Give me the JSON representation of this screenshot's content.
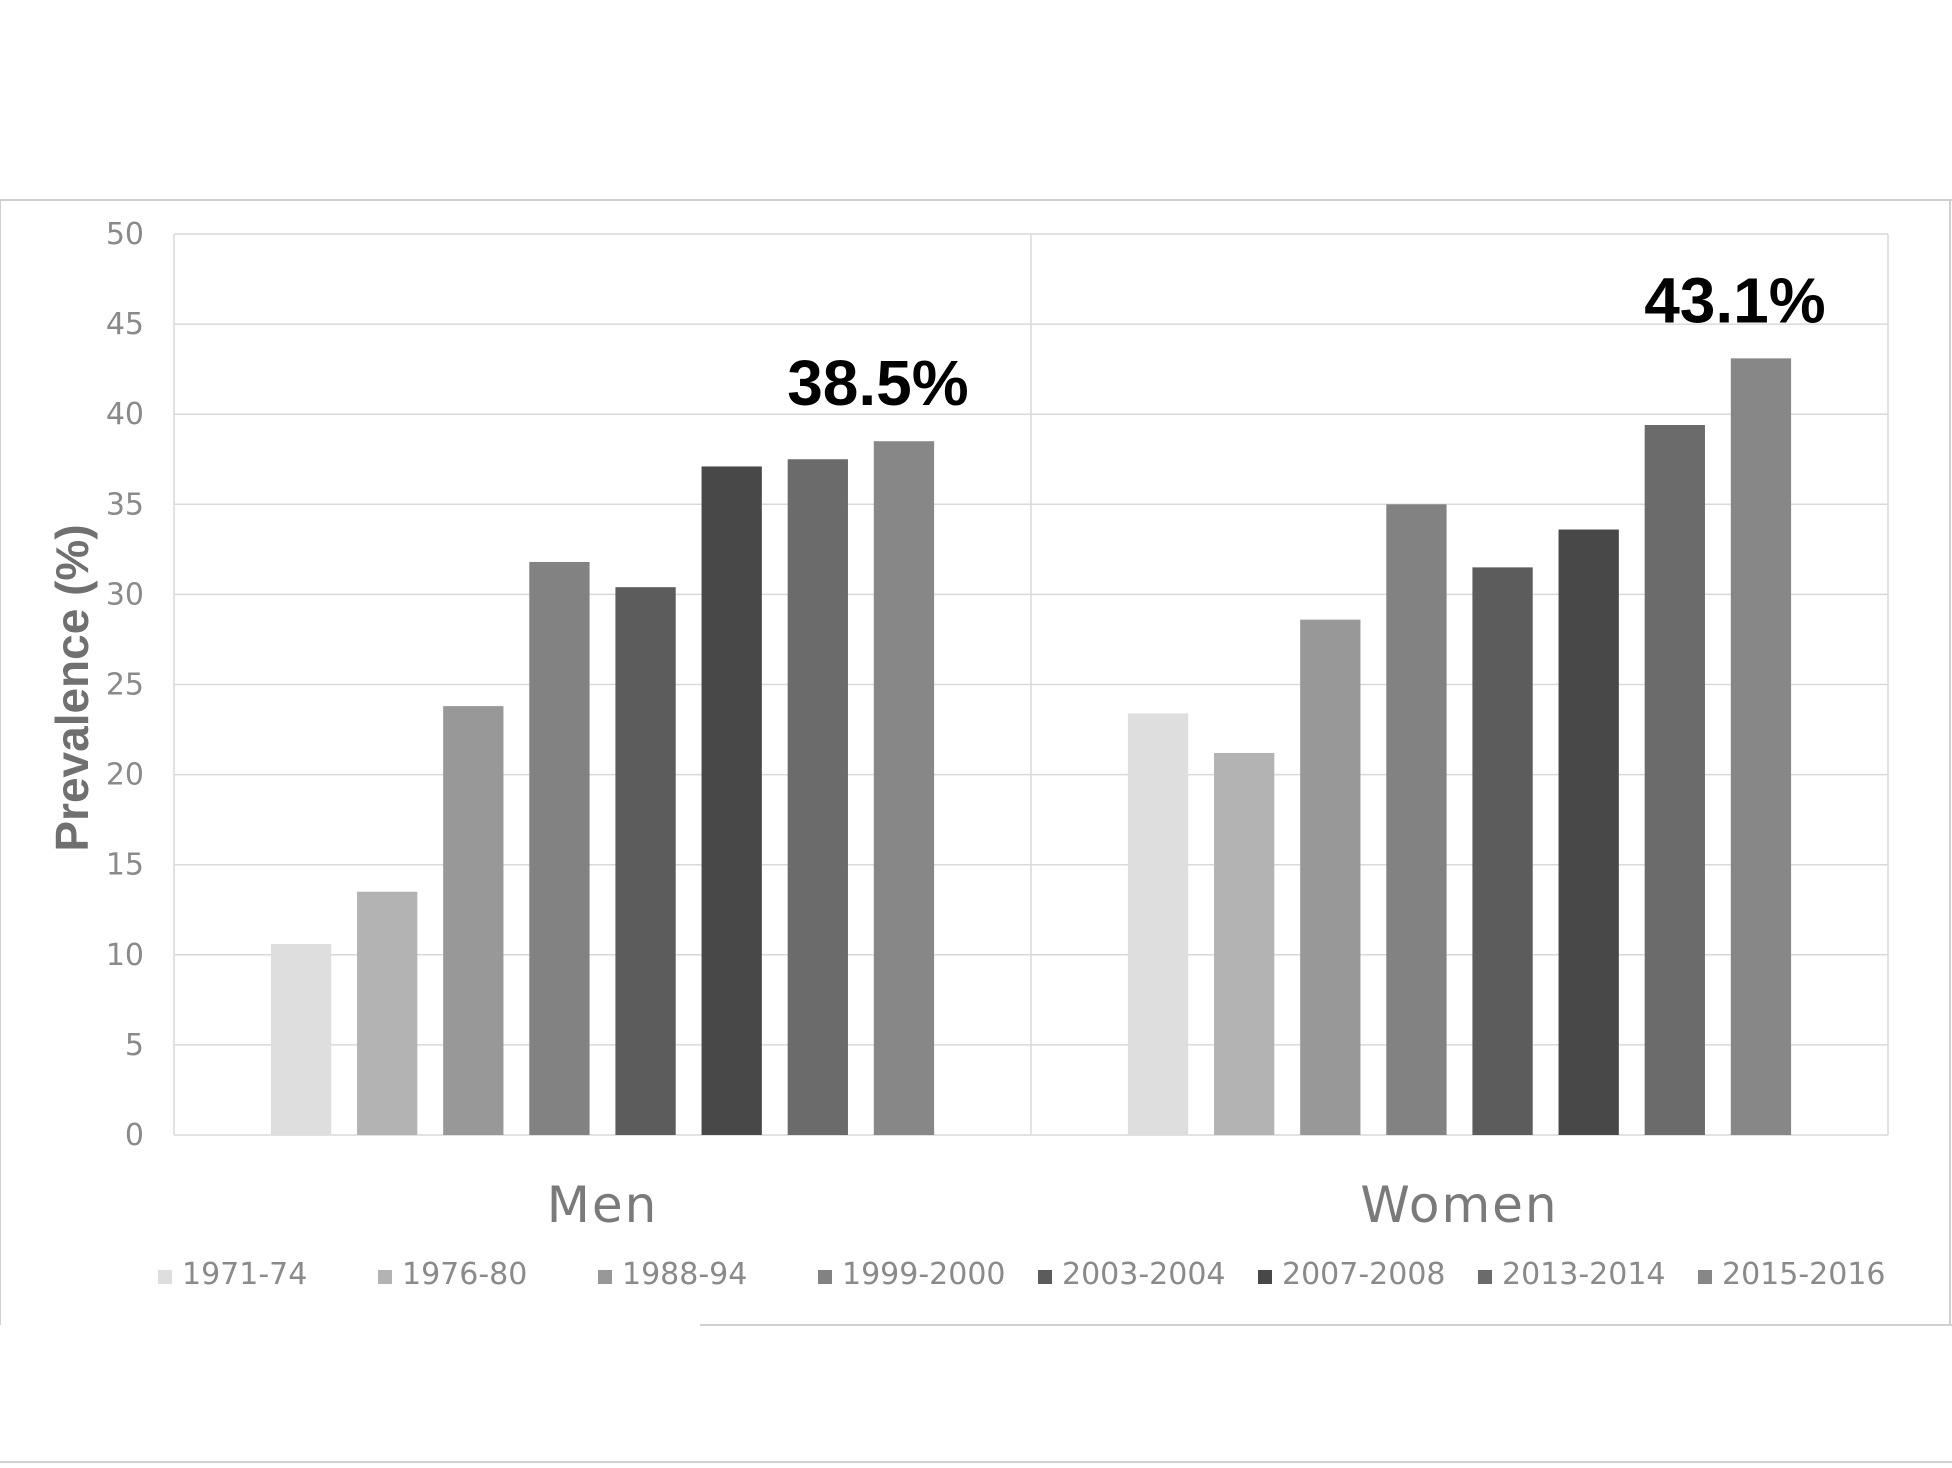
{
  "chart_data": {
    "type": "bar",
    "title": "",
    "xlabel": "",
    "ylabel": "Prevalence (%)",
    "ylim": [
      0,
      50
    ],
    "yticks": [
      "0",
      "5",
      "10",
      "15",
      "20",
      "25",
      "30",
      "35",
      "40",
      "45",
      "50"
    ],
    "categories": [
      "Men",
      "Women"
    ],
    "grid": true,
    "legend_position": "bottom",
    "series": [
      {
        "name": "1971-74",
        "color": "#dedede",
        "values": [
          10.6,
          23.4
        ]
      },
      {
        "name": "1976-80",
        "color": "#b3b3b3",
        "values": [
          13.5,
          21.2
        ]
      },
      {
        "name": "1988-94",
        "color": "#989898",
        "values": [
          23.8,
          28.6
        ]
      },
      {
        "name": "1999-2000",
        "color": "#828282",
        "values": [
          31.8,
          35.0
        ]
      },
      {
        "name": "2003-2004",
        "color": "#5c5c5c",
        "values": [
          30.4,
          31.5
        ]
      },
      {
        "name": "2007-2008",
        "color": "#484848",
        "values": [
          37.1,
          33.6
        ]
      },
      {
        "name": "2013-2014",
        "color": "#6b6b6b",
        "values": [
          37.5,
          39.4
        ]
      },
      {
        "name": "2015-2016",
        "color": "#878787",
        "values": [
          38.5,
          43.1
        ]
      }
    ],
    "annotations": [
      {
        "text": "38.5%",
        "category": "Men",
        "series": "2015-2016"
      },
      {
        "text": "43.1%",
        "category": "Women",
        "series": "2015-2016"
      }
    ]
  }
}
